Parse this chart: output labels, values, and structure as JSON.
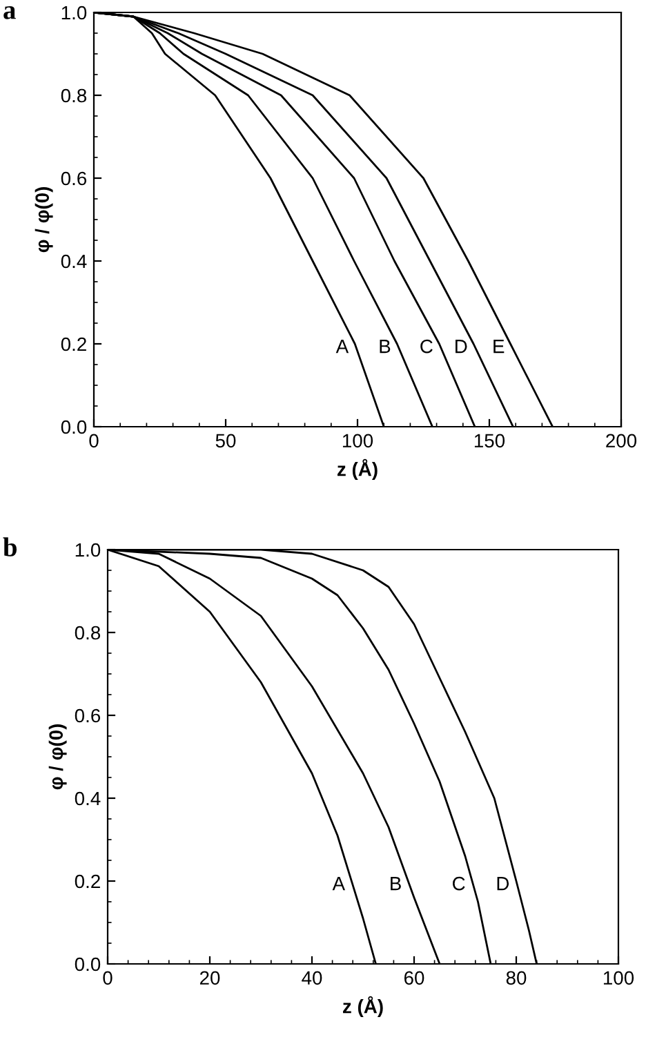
{
  "chart_data": [
    {
      "type": "line",
      "title": "a",
      "xlabel": "z (Å)",
      "ylabel": "φ / φ(0)",
      "xlim": [
        0,
        200
      ],
      "xticks": [
        0,
        50,
        100,
        150,
        200
      ],
      "ylim": [
        0,
        1
      ],
      "yticks": [
        {
          "value": 0,
          "label": "0.0"
        },
        {
          "value": 0.2,
          "label": "0.2"
        },
        {
          "value": 0.4,
          "label": "0.4"
        },
        {
          "value": 0.6,
          "label": "0.6"
        },
        {
          "value": 0.8,
          "label": "0.8"
        },
        {
          "value": 1,
          "label": "1.0"
        }
      ],
      "grid": false,
      "legend": false,
      "marker": "none",
      "line_style": "solid",
      "series": [
        {
          "name": "A",
          "color": "#000000",
          "x": [
            0,
            15,
            22,
            27,
            46,
            67,
            83,
            99,
            110
          ],
          "values": [
            1,
            0.99,
            0.95,
            0.9,
            0.8,
            0.6,
            0.4,
            0.2,
            0
          ]
        },
        {
          "name": "B",
          "color": "#000000",
          "x": [
            0,
            15,
            25,
            34,
            58.5,
            83,
            98.7,
            115,
            128.4
          ],
          "values": [
            1,
            0.99,
            0.95,
            0.9,
            0.8,
            0.6,
            0.4,
            0.2,
            0
          ]
        },
        {
          "name": "C",
          "color": "#000000",
          "x": [
            0,
            15,
            28,
            41,
            71,
            98.7,
            114,
            131,
            144.5
          ],
          "values": [
            1,
            0.99,
            0.95,
            0.9,
            0.8,
            0.6,
            0.4,
            0.2,
            0
          ]
        },
        {
          "name": "D",
          "color": "#000000",
          "x": [
            0,
            15,
            32,
            50,
            83,
            111,
            127.5,
            144,
            159
          ],
          "values": [
            1,
            0.99,
            0.95,
            0.9,
            0.8,
            0.6,
            0.4,
            0.2,
            0
          ]
        },
        {
          "name": "E",
          "color": "#000000",
          "x": [
            0,
            15,
            38,
            64,
            97,
            125,
            142,
            158,
            174
          ],
          "values": [
            1,
            0.99,
            0.95,
            0.9,
            0.8,
            0.6,
            0.4,
            0.2,
            0
          ]
        }
      ]
    },
    {
      "type": "line",
      "title": "b",
      "xlabel": "z (Å)",
      "ylabel": "φ / φ(0)",
      "xlim": [
        0,
        100
      ],
      "xticks": [
        0,
        20,
        40,
        60,
        80,
        100
      ],
      "ylim": [
        0,
        1
      ],
      "yticks": [
        {
          "value": 0,
          "label": "0.0"
        },
        {
          "value": 0.2,
          "label": "0.2"
        },
        {
          "value": 0.4,
          "label": "0.4"
        },
        {
          "value": 0.6,
          "label": "0.6"
        },
        {
          "value": 0.8,
          "label": "0.8"
        },
        {
          "value": 1,
          "label": "1.0"
        }
      ],
      "grid": false,
      "legend": false,
      "marker": "none",
      "line_style": "solid",
      "series": [
        {
          "name": "A",
          "color": "#000000",
          "x": [
            0,
            10,
            20,
            30,
            40,
            45,
            50,
            52.5
          ],
          "values": [
            1,
            0.96,
            0.85,
            0.68,
            0.46,
            0.31,
            0.11,
            0
          ]
        },
        {
          "name": "B",
          "color": "#000000",
          "x": [
            0,
            10,
            20,
            30,
            40,
            50,
            55,
            60,
            65
          ],
          "values": [
            1,
            0.99,
            0.93,
            0.84,
            0.67,
            0.46,
            0.33,
            0.16,
            0
          ]
        },
        {
          "name": "C",
          "color": "#000000",
          "x": [
            0,
            20,
            30,
            40,
            45,
            50,
            55,
            60,
            65,
            70,
            72.5,
            75
          ],
          "values": [
            1,
            0.99,
            0.98,
            0.93,
            0.89,
            0.81,
            0.71,
            0.58,
            0.44,
            0.26,
            0.15,
            0
          ]
        },
        {
          "name": "D",
          "color": "#000000",
          "x": [
            0,
            30,
            40,
            50,
            55,
            60,
            65,
            70,
            75.7,
            80,
            82.5,
            84
          ],
          "values": [
            1,
            1,
            0.99,
            0.95,
            0.91,
            0.82,
            0.69,
            0.56,
            0.4,
            0.2,
            0.08,
            0
          ]
        }
      ]
    }
  ]
}
